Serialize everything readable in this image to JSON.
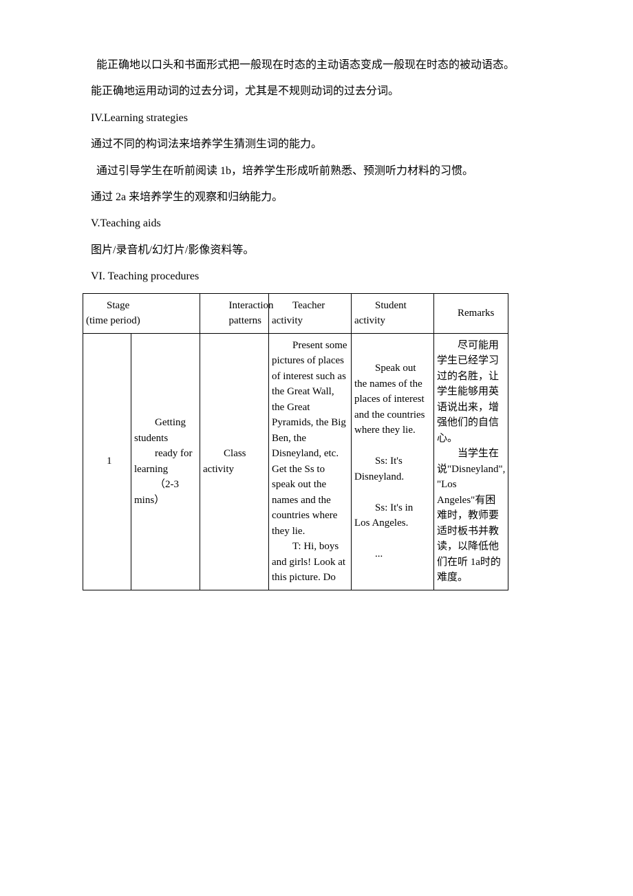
{
  "paras": {
    "p1": "能正确地以口头和书面形式把一般现在时态的主动语态变成一般现在时态的被动语态。",
    "p2": "能正确地运用动词的过去分词，尤其是不规则动词的过去分词。",
    "h4": "IV.Learning strategies",
    "p3": "通过不同的构词法来培养学生猜测生词的能力。",
    "p4": "通过引导学生在听前阅读 1b，培养学生形成听前熟悉、预测听力材料的习惯。",
    "p5": "通过 2a 来培养学生的观察和归纳能力。",
    "h5": "V.Teaching aids",
    "p6": "图片/录音机/幻灯片/影像资料等。",
    "h6": "VI. Teaching procedures"
  },
  "table": {
    "header": {
      "stage_a": "Stage",
      "stage_b": "(time period)",
      "interaction_a": "Interaction",
      "interaction_b": "patterns",
      "teacher": "Teacher activity",
      "student": "Student activity",
      "remarks": "Remarks"
    },
    "row1": {
      "num": "1",
      "stage_a": "Getting students",
      "stage_b": "ready for learning",
      "stage_c": "（2-3 mins）",
      "interaction": "Class activity",
      "teacher_a": "Present some pictures of places of interest such as the Great Wall, the Great Pyramids, the Big Ben, the Disneyland, etc. Get the Ss to speak out the names and the countries where they lie.",
      "teacher_b": "T: Hi, boys and girls! Look at this picture. Do",
      "student_a": "Speak out the names of the places of interest and the countries where they lie.",
      "student_b": "Ss: It's Disneyland.",
      "student_c": "Ss: It's in Los Angeles.",
      "student_d": "...",
      "remarks_a": "尽可能用学生已经学习过的名胜，让学生能够用英语说出来，增强他们的自信心。",
      "remarks_b": "当学生在说\"Disneyland\", \"Los Angeles\"有困难时，教师要适时板书并教读，以降低他们在听 1a时的难度。"
    }
  }
}
